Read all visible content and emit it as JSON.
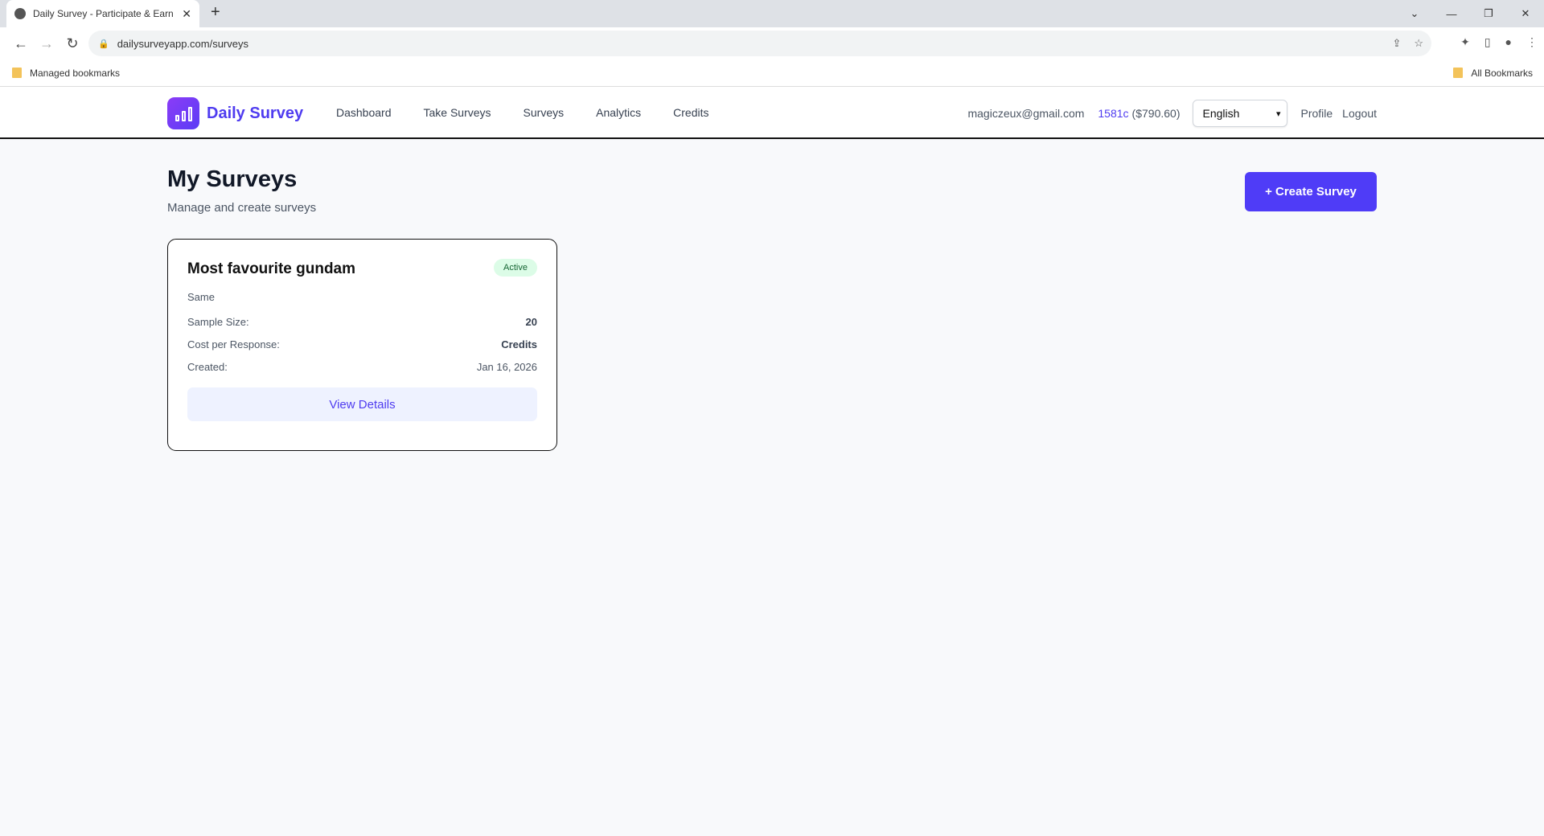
{
  "browser": {
    "tab_title": "Daily Survey - Participate & Earn",
    "url": "dailysurveyapp.com/surveys",
    "bookmarks": {
      "managed": "Managed bookmarks",
      "all": "All Bookmarks"
    }
  },
  "nav": {
    "brand": "Daily Survey",
    "links": [
      "Dashboard",
      "Take Surveys",
      "Surveys",
      "Analytics",
      "Credits"
    ],
    "email": "magiczeux@gmail.com",
    "credits": "1581c",
    "credits_usd": "($790.60)",
    "language": "English",
    "profile": "Profile",
    "logout": "Logout"
  },
  "page": {
    "title": "My Surveys",
    "subtitle": "Manage and create surveys",
    "create_label": "+ Create Survey"
  },
  "surveys": [
    {
      "title": "Most favourite gundam",
      "status": "Active",
      "description": "Same",
      "rows": [
        {
          "label": "Sample Size:",
          "value": "20"
        },
        {
          "label": "Cost per Response:",
          "value": "Credits"
        },
        {
          "label": "Created:",
          "value": "Jan 16, 2026"
        }
      ],
      "action": "View Details"
    }
  ],
  "colors": {
    "accent": "#4f3cf7",
    "badge_bg": "#dcfce7"
  }
}
